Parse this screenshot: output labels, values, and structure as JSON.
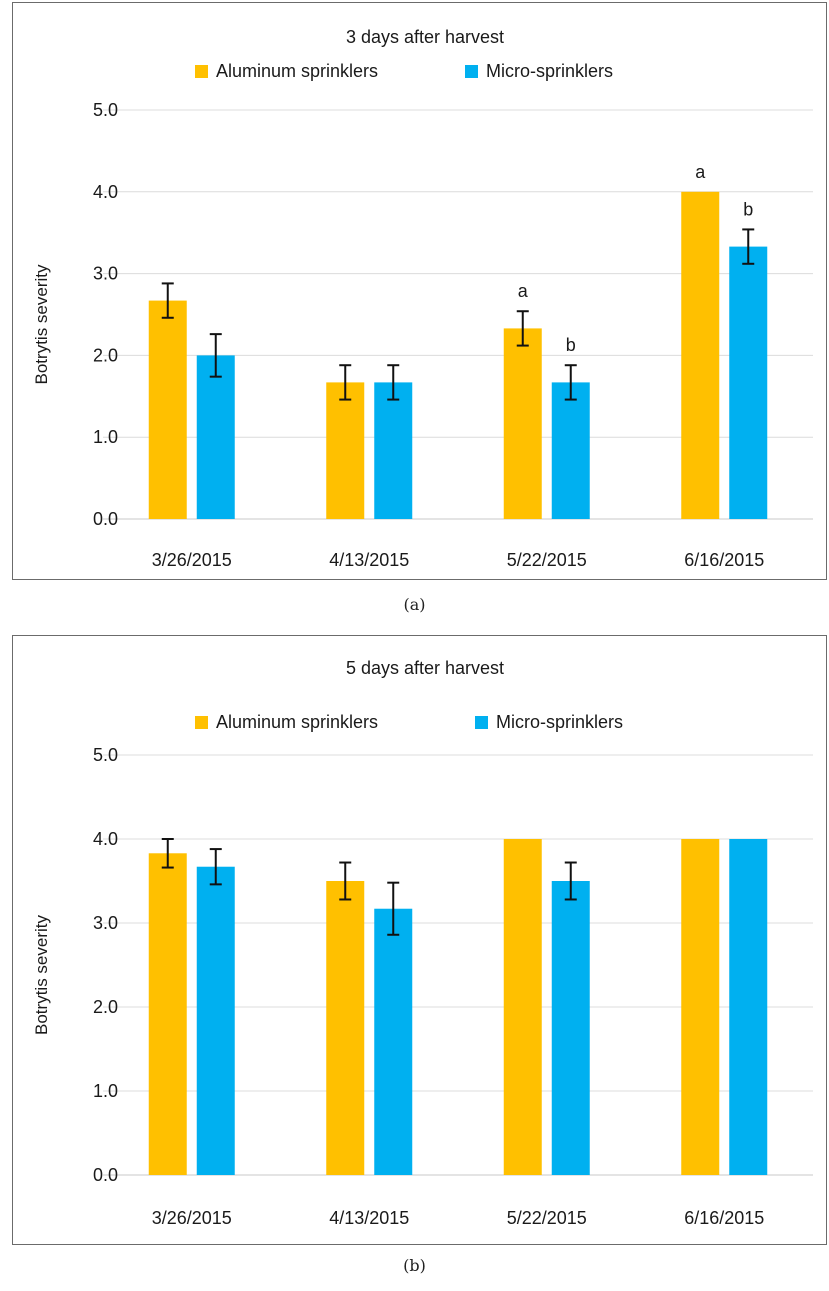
{
  "chart_data": [
    {
      "type": "bar",
      "title": "3 days after harvest",
      "xlabel": "",
      "ylabel": "Botrytis severity",
      "ylim": [
        0,
        5
      ],
      "yticks": [
        "0.0",
        "1.0",
        "2.0",
        "3.0",
        "4.0",
        "5.0"
      ],
      "grid": true,
      "legend": "top",
      "categories": [
        "3/26/2015",
        "4/13/2015",
        "5/22/2015",
        "6/16/2015"
      ],
      "series": [
        {
          "name": "Aluminum sprinklers",
          "color": "#FFC000",
          "values": [
            2.67,
            1.67,
            2.33,
            4.0
          ],
          "errors": [
            0.21,
            0.21,
            0.21,
            0
          ],
          "labels": [
            "",
            "",
            "a",
            "a"
          ]
        },
        {
          "name": "Micro-sprinklers",
          "color": "#00B0F0",
          "values": [
            2.0,
            1.67,
            1.67,
            3.33
          ],
          "errors": [
            0.26,
            0.21,
            0.21,
            0.21
          ],
          "labels": [
            "",
            "",
            "b",
            "b"
          ]
        }
      ]
    },
    {
      "type": "bar",
      "title": "5 days after harvest",
      "xlabel": "",
      "ylabel": "Botrytis severity",
      "ylim": [
        0,
        5
      ],
      "yticks": [
        "0.0",
        "1.0",
        "2.0",
        "3.0",
        "4.0",
        "5.0"
      ],
      "grid": true,
      "legend": "top",
      "categories": [
        "3/26/2015",
        "4/13/2015",
        "5/22/2015",
        "6/16/2015"
      ],
      "series": [
        {
          "name": "Aluminum sprinklers",
          "color": "#FFC000",
          "values": [
            3.83,
            3.5,
            4.0,
            4.0
          ],
          "errors": [
            0.17,
            0.22,
            0,
            0
          ],
          "labels": [
            "",
            "",
            "",
            ""
          ]
        },
        {
          "name": "Micro-sprinklers",
          "color": "#00B0F0",
          "values": [
            3.67,
            3.17,
            3.5,
            4.0
          ],
          "errors": [
            0.21,
            0.31,
            0.22,
            0
          ],
          "labels": [
            "",
            "",
            "",
            ""
          ]
        }
      ]
    }
  ],
  "captions": [
    "(a)",
    "(b)"
  ]
}
